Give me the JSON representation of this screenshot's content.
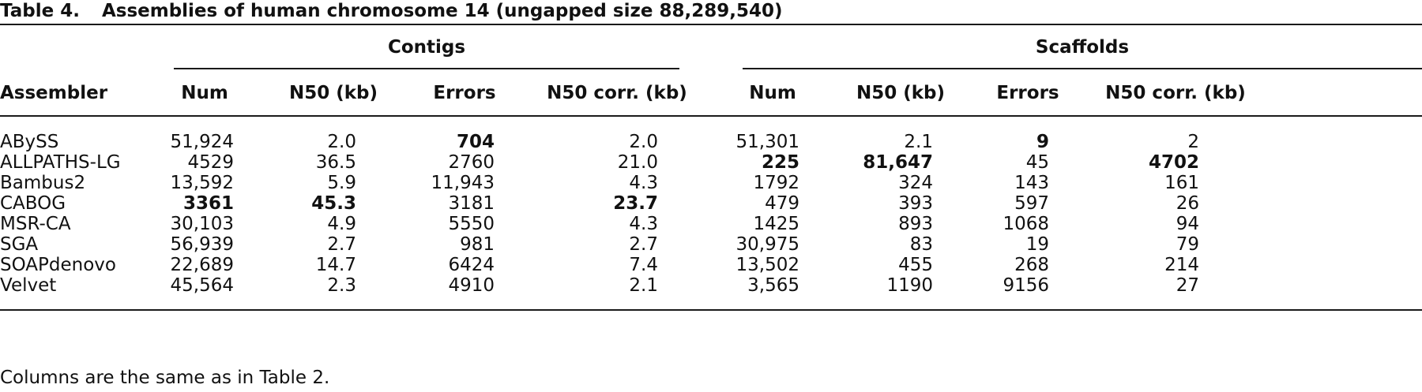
{
  "table": {
    "number": "Table 4.",
    "title": "Assemblies of human chromosome 14 (ungapped size 88,289,540)",
    "groups": {
      "contigs": "Contigs",
      "scaffolds": "Scaffolds"
    },
    "first_column_header": "Assembler",
    "column_headers": [
      "Num",
      "N50 (kb)",
      "Errors",
      "N50 corr. (kb)",
      "Num",
      "N50 (kb)",
      "Errors",
      "N50 corr. (kb)"
    ],
    "rows": [
      {
        "assembler": "ABySS",
        "values": [
          "51,924",
          "2.0",
          "704",
          "2.0",
          "51,301",
          "2.1",
          "9",
          "2"
        ],
        "bold": [
          false,
          false,
          true,
          false,
          false,
          false,
          true,
          false
        ]
      },
      {
        "assembler": "ALLPATHS-LG",
        "values": [
          "4529",
          "36.5",
          "2760",
          "21.0",
          "225",
          "81,647",
          "45",
          "4702"
        ],
        "bold": [
          false,
          false,
          false,
          false,
          true,
          true,
          false,
          true
        ]
      },
      {
        "assembler": "Bambus2",
        "values": [
          "13,592",
          "5.9",
          "11,943",
          "4.3",
          "1792",
          "324",
          "143",
          "161"
        ],
        "bold": [
          false,
          false,
          false,
          false,
          false,
          false,
          false,
          false
        ]
      },
      {
        "assembler": "CABOG",
        "values": [
          "3361",
          "45.3",
          "3181",
          "23.7",
          "479",
          "393",
          "597",
          "26"
        ],
        "bold": [
          true,
          true,
          false,
          true,
          false,
          false,
          false,
          false
        ]
      },
      {
        "assembler": "MSR-CA",
        "values": [
          "30,103",
          "4.9",
          "5550",
          "4.3",
          "1425",
          "893",
          "1068",
          "94"
        ],
        "bold": [
          false,
          false,
          false,
          false,
          false,
          false,
          false,
          false
        ]
      },
      {
        "assembler": "SGA",
        "values": [
          "56,939",
          "2.7",
          "981",
          "2.7",
          "30,975",
          "83",
          "19",
          "79"
        ],
        "bold": [
          false,
          false,
          false,
          false,
          false,
          false,
          false,
          false
        ]
      },
      {
        "assembler": "SOAPdenovo",
        "values": [
          "22,689",
          "14.7",
          "6424",
          "7.4",
          "13,502",
          "455",
          "268",
          "214"
        ],
        "bold": [
          false,
          false,
          false,
          false,
          false,
          false,
          false,
          false
        ]
      },
      {
        "assembler": "Velvet",
        "values": [
          "45,564",
          "2.3",
          "4910",
          "2.1",
          "3,565",
          "1190",
          "9156",
          "27"
        ],
        "bold": [
          false,
          false,
          false,
          false,
          false,
          false,
          false,
          false
        ]
      }
    ],
    "footnote": "Columns are the same as in Table 2."
  }
}
